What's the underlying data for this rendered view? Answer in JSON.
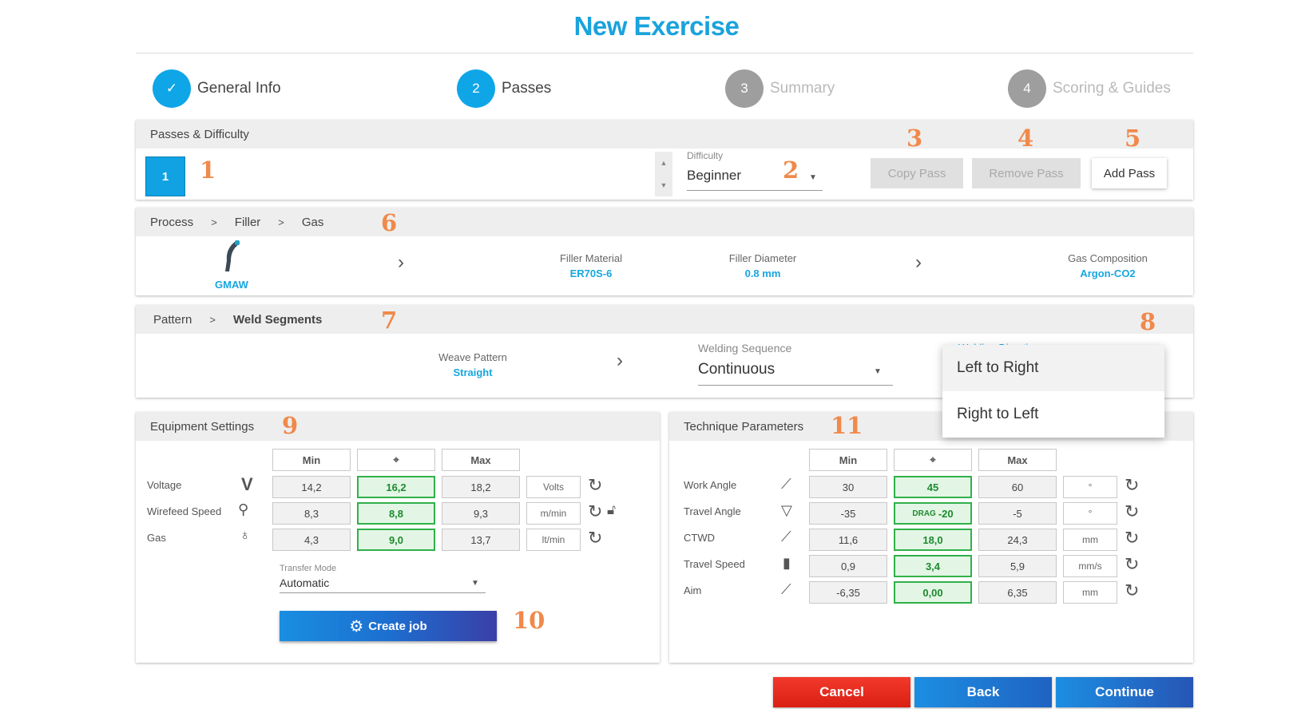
{
  "page_title": "New Exercise",
  "stepper": [
    {
      "number": "✓",
      "label": "General Info",
      "state": "done"
    },
    {
      "number": "2",
      "label": "Passes",
      "state": "active"
    },
    {
      "number": "3",
      "label": "Summary",
      "state": "inactive"
    },
    {
      "number": "4",
      "label": "Scoring & Guides",
      "state": "inactive"
    }
  ],
  "passes": {
    "header": "Passes & Difficulty",
    "pass_number": "1",
    "difficulty_label": "Difficulty",
    "difficulty_value": "Beginner",
    "copy_pass": "Copy Pass",
    "remove_pass": "Remove Pass",
    "add_pass": "Add Pass"
  },
  "process": {
    "crumbs": [
      "Process",
      "Filler",
      "Gas"
    ],
    "process_name": "GMAW",
    "filler_material_label": "Filler Material",
    "filler_material_value": "ER70S-6",
    "filler_diameter_label": "Filler Diameter",
    "filler_diameter_value": "0.8 mm",
    "gas_label": "Gas Composition",
    "gas_value": "Argon-CO2"
  },
  "pattern": {
    "crumbs": [
      "Pattern",
      "Weld Segments"
    ],
    "weave_label": "Weave Pattern",
    "weave_value": "Straight",
    "sequence_label": "Welding Sequence",
    "sequence_value": "Continuous",
    "direction_label": "Welding Direction",
    "direction_options": [
      "Left to Right",
      "Right to Left"
    ]
  },
  "equipment": {
    "header": "Equipment Settings",
    "col_min": "Min",
    "col_max": "Max",
    "rows": [
      {
        "label": "Voltage",
        "icon": "V",
        "min": "14,2",
        "target": "16,2",
        "max": "18,2",
        "unit": "Volts"
      },
      {
        "label": "Wirefeed Speed",
        "icon": "⚲",
        "min": "8,3",
        "target": "8,8",
        "max": "9,3",
        "unit": "m/min"
      },
      {
        "label": "Gas",
        "icon": "♁",
        "min": "4,3",
        "target": "9,0",
        "max": "13,7",
        "unit": "lt/min"
      }
    ],
    "transfer_mode_label": "Transfer Mode",
    "transfer_mode_value": "Automatic",
    "create_job": "Create job"
  },
  "technique": {
    "header": "Technique Parameters",
    "col_min": "Min",
    "col_max": "Max",
    "rows": [
      {
        "label": "Work Angle",
        "min": "30",
        "target": "45",
        "max": "60",
        "unit": "°"
      },
      {
        "label": "Travel Angle",
        "min": "-35",
        "target_prefix": "DRAG",
        "target": "-20",
        "max": "-5",
        "unit": "°"
      },
      {
        "label": "CTWD",
        "min": "11,6",
        "target": "18,0",
        "max": "24,3",
        "unit": "mm"
      },
      {
        "label": "Travel Speed",
        "min": "0,9",
        "target": "3,4",
        "max": "5,9",
        "unit": "mm/s"
      },
      {
        "label": "Aim",
        "min": "-6,35",
        "target": "0,00",
        "max": "6,35",
        "unit": "mm"
      }
    ]
  },
  "footer": {
    "cancel": "Cancel",
    "back": "Back",
    "continue": "Continue"
  },
  "annotations": [
    "1",
    "2",
    "3",
    "4",
    "5",
    "6",
    "7",
    "8",
    "9",
    "10",
    "11"
  ],
  "colors": {
    "accent": "#1aa3dc",
    "annotation": "#f0894b",
    "target_green": "#31b04a",
    "cancel_red": "#e3281a"
  }
}
